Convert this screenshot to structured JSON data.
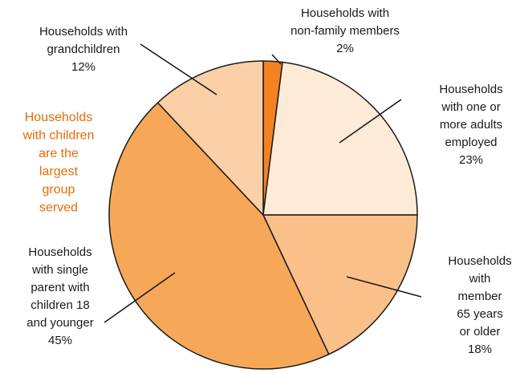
{
  "chart_data": {
    "type": "pie",
    "title": "",
    "slices": [
      {
        "label": "Households with non-family members",
        "value": 2,
        "display": "2%",
        "color": "#f58220"
      },
      {
        "label": "Households with one or more adults employed",
        "value": 23,
        "display": "23%",
        "color": "#fdebd7"
      },
      {
        "label": "Households with member 65 years or older",
        "value": 18,
        "display": "18%",
        "color": "#fbc08a"
      },
      {
        "label": "Households with single parent with children 18 and younger",
        "value": 45,
        "display": "45%",
        "color": "#f6a858"
      },
      {
        "label": "Households with grandchildren",
        "value": 12,
        "display": "12%",
        "color": "#fbd0a6"
      }
    ],
    "label_lines": [
      [
        "Households with",
        "non-family members",
        "2%"
      ],
      [
        "Households",
        "with one or",
        "more adults",
        "employed",
        "23%"
      ],
      [
        "Households",
        "with",
        "member",
        "65 years",
        "or older",
        "18%"
      ],
      [
        "Households",
        "with single",
        "parent with",
        "children 18",
        "and younger",
        "45%"
      ],
      [
        "Households with",
        "grandchildren",
        "12%"
      ]
    ],
    "annotation_lines": [
      "Households",
      "with children",
      "are the",
      "largest",
      "group",
      "served"
    ]
  },
  "colors": {
    "slice_outline": "#1a1a1a",
    "leader_line": "#1a1a1a",
    "annotation": "#e36c0a"
  }
}
